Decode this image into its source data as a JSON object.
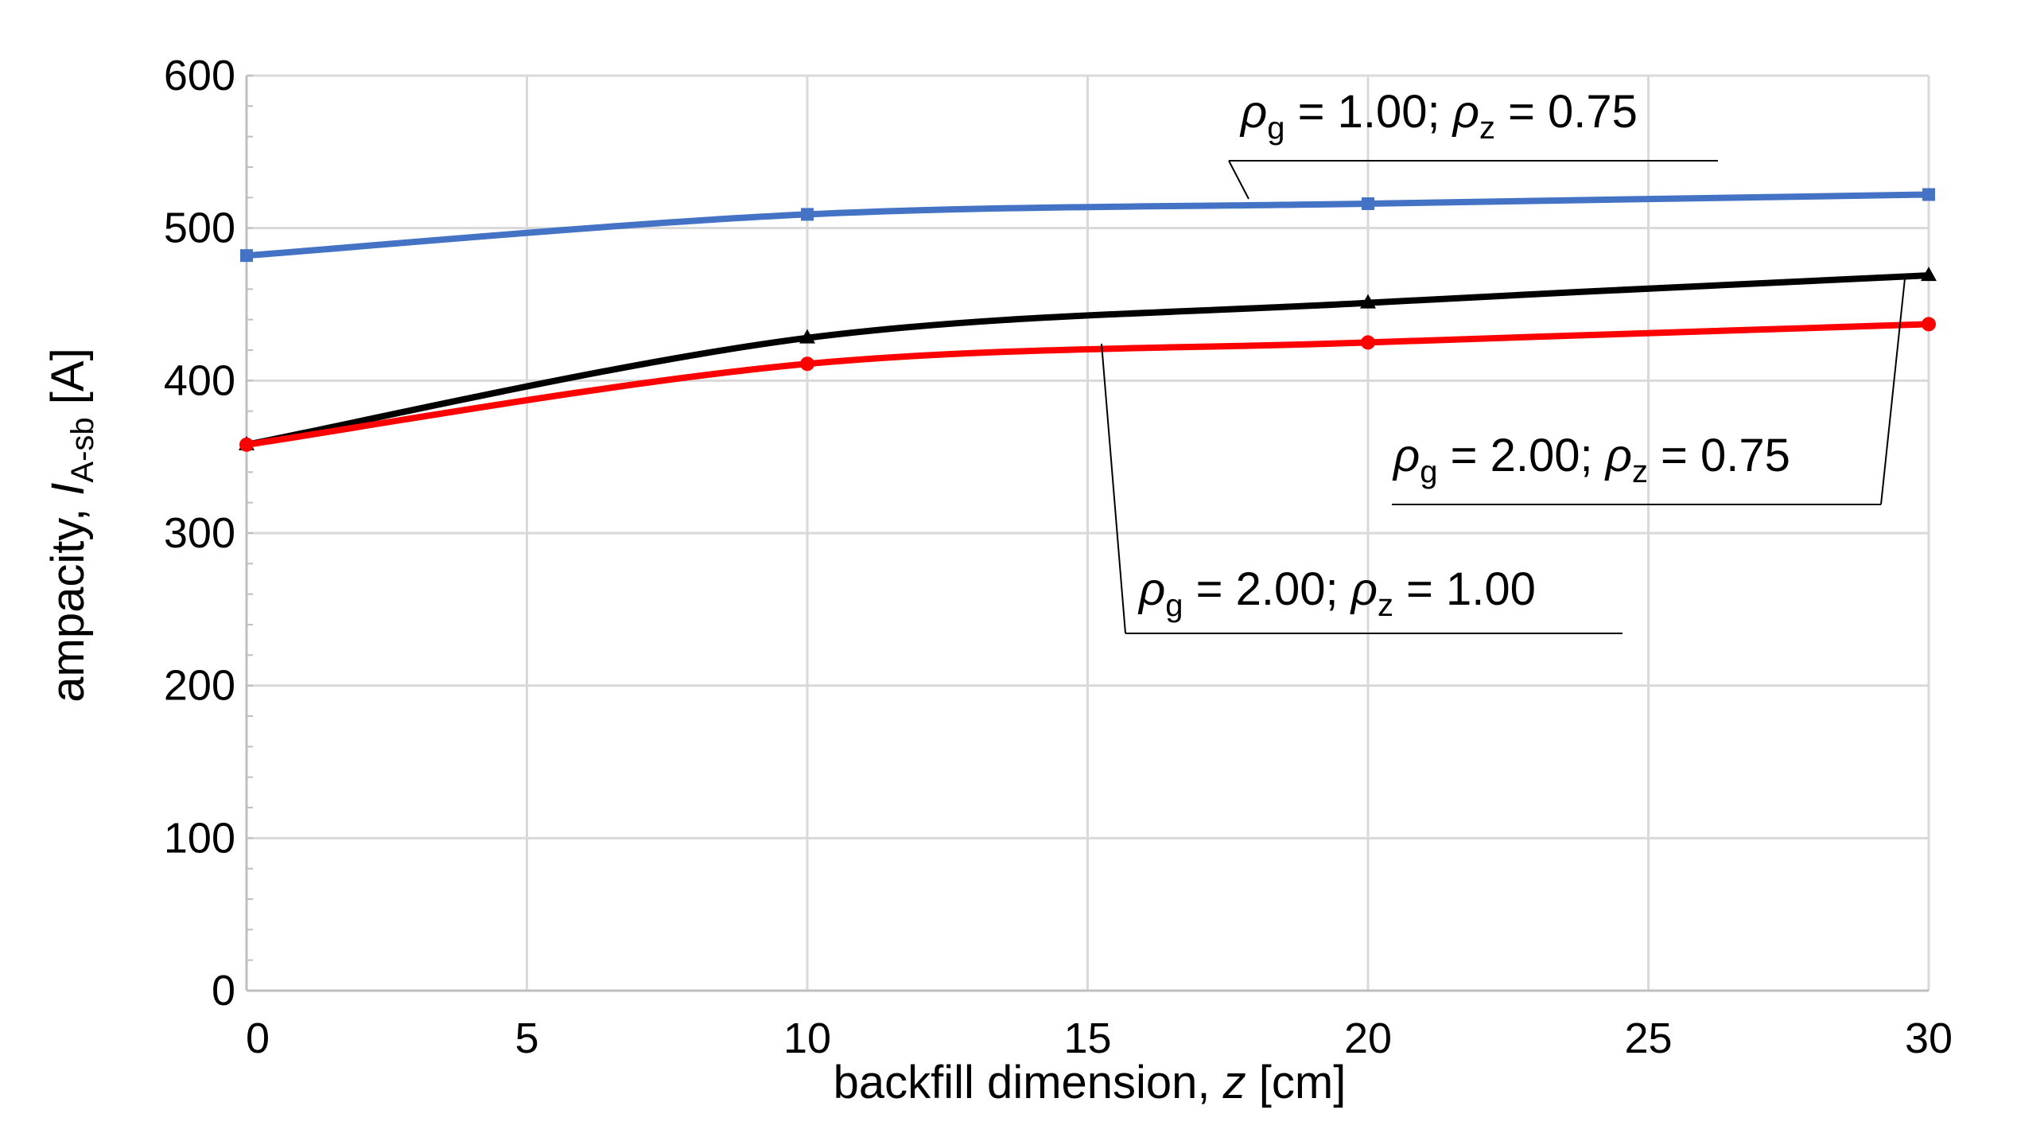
{
  "chart_data": {
    "type": "line",
    "title": "",
    "xlabel": {
      "prefix": "backfill dimension, ",
      "var": "z",
      "suffix": " [cm]"
    },
    "ylabel": {
      "prefix": "ampacity, ",
      "var": "I",
      "sub": "A-sb",
      "suffix": " [A]"
    },
    "xlim": [
      0,
      30
    ],
    "ylim": [
      0,
      600
    ],
    "xticks": [
      "0",
      "5",
      "10",
      "15",
      "20",
      "25",
      "30"
    ],
    "yticks": [
      "0",
      "100",
      "200",
      "300",
      "400",
      "500",
      "600"
    ],
    "grid": true,
    "series": [
      {
        "name": "rho_g = 1.00; rho_z = 0.75",
        "color": "#4472C4",
        "marker": "square",
        "x": [
          0,
          10,
          20,
          30
        ],
        "y": [
          482,
          509,
          516,
          522
        ],
        "label": {
          "rho": "ρ",
          "sub1": "g",
          "eq1": " = 1.00;  ",
          "sub2": "z",
          "eq2": " = 0.75"
        }
      },
      {
        "name": "rho_g = 2.00; rho_z = 0.75",
        "color": "#000000",
        "marker": "triangle",
        "x": [
          0,
          10,
          20,
          30
        ],
        "y": [
          358,
          428,
          451,
          469
        ],
        "label": {
          "rho": "ρ",
          "sub1": "g",
          "eq1": " = 2.00;  ",
          "sub2": "z",
          "eq2": " = 0.75"
        }
      },
      {
        "name": "rho_g = 2.00; rho_z = 1.00",
        "color": "#FF0000",
        "marker": "circle",
        "x": [
          0,
          10,
          20,
          30
        ],
        "y": [
          358,
          411,
          425,
          437
        ],
        "label": {
          "rho": "ρ",
          "sub1": "g",
          "eq1": " = 2.00;  ",
          "sub2": "z",
          "eq2": " = 1.00"
        }
      }
    ]
  }
}
